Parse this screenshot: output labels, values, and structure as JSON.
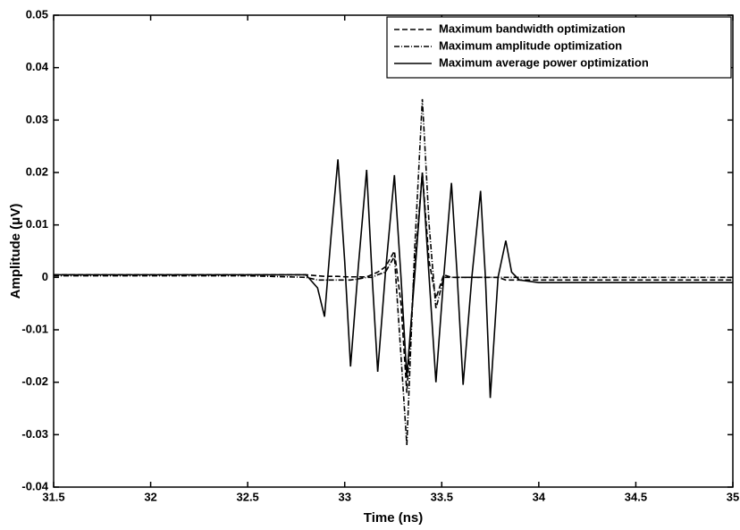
{
  "chart_data": {
    "type": "line",
    "x_label": "Time (ns)",
    "y_label": "Amplitude (μV)",
    "x": [
      31.5,
      32.5,
      32.8,
      32.86,
      32.896,
      32.93,
      32.965,
      33.0,
      33.03,
      33.07,
      33.113,
      33.14,
      33.17,
      33.21,
      33.256,
      33.29,
      33.32,
      33.36,
      33.4,
      33.435,
      33.47,
      33.51,
      33.55,
      33.58,
      33.61,
      33.655,
      33.7,
      33.725,
      33.75,
      33.79,
      33.83,
      33.86,
      33.9,
      34.0,
      35.0
    ],
    "series": [
      {
        "name": "Maximum bandwidth optimization",
        "color": "#000000",
        "dash": "6,3",
        "values": [
          0.0005,
          0.0005,
          0.0005,
          0.0003,
          0.0002,
          0.0002,
          0.0002,
          0.0001,
          0.0001,
          0.0001,
          0.0001,
          0.0005,
          0.001,
          0.002,
          0.005,
          -0.005,
          -0.022,
          0.002,
          0.02,
          0.003,
          -0.004,
          0.0005,
          0,
          0,
          0,
          0,
          0,
          0,
          0,
          0,
          -0.0005,
          -0.0005,
          -0.0005,
          -0.0005,
          -0.0005
        ]
      },
      {
        "name": "Maximum amplitude optimization",
        "color": "#000000",
        "dash": "6,2,1,2",
        "values": [
          0.0003,
          0.0003,
          0,
          -0.0005,
          -0.0005,
          -0.0005,
          -0.0005,
          -0.0005,
          -0.0005,
          -0.0003,
          0,
          0,
          0.0005,
          0.001,
          0.004,
          -0.015,
          -0.032,
          0.005,
          0.034,
          0.01,
          -0.006,
          0,
          0,
          0,
          0,
          0,
          0,
          0,
          0,
          0,
          0,
          0,
          0,
          0,
          0
        ]
      },
      {
        "name": "Maximum average power optimization",
        "color": "#000000",
        "dash": "none",
        "values": [
          0.0005,
          0.0005,
          0.0005,
          -0.002,
          -0.0075,
          0.008,
          0.0225,
          0.003,
          -0.017,
          0.002,
          0.0205,
          0.001,
          -0.018,
          0.001,
          0.0195,
          0,
          -0.019,
          0,
          0.02,
          0,
          -0.02,
          0,
          0.018,
          0,
          -0.0205,
          0,
          0.0165,
          0,
          -0.023,
          0,
          0.007,
          0.001,
          -0.0005,
          -0.001,
          -0.001
        ]
      }
    ],
    "xlim": [
      31.5,
      35
    ],
    "xticks": [
      31.5,
      32,
      32.5,
      33,
      33.5,
      34,
      34.5,
      35
    ],
    "ylim": [
      -0.04,
      0.05
    ],
    "yticks": [
      -0.04,
      -0.03,
      -0.02,
      -0.01,
      0,
      0.01,
      0.02,
      0.03,
      0.04,
      0.05
    ],
    "grid": false,
    "legend": "upper right"
  }
}
